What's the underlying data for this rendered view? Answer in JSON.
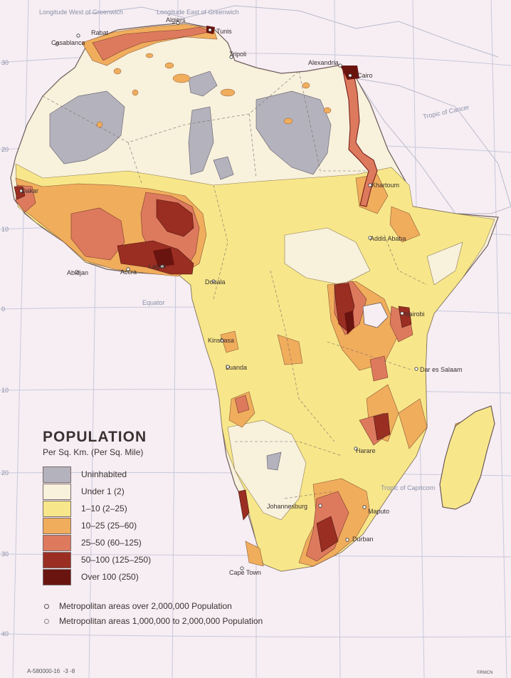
{
  "map": {
    "edge_labels": {
      "west": "Longitude West of Greenwich",
      "east": "Longitude East of Greenwich",
      "cancer": "Tropic of Cancer",
      "equator": "Equator",
      "capricorn": "Tropic of Capricorn"
    },
    "lat_labels": [
      "30",
      "20",
      "10",
      "0",
      "10",
      "20",
      "30",
      "40"
    ],
    "cities": [
      "Rabat",
      "Casablanca",
      "Algiers",
      "Tunis",
      "Tripoli",
      "Alexandria",
      "Cairo",
      "Khartoum",
      "Dakar",
      "Addis Ababa",
      "Abidjan",
      "Accra",
      "Lagos",
      "Douala",
      "Kinshasa",
      "Luanda",
      "Nairobi",
      "Dar es Salaam",
      "Harare",
      "Johannesburg",
      "Maputo",
      "Durban",
      "Cape Town"
    ],
    "colors": {
      "ocean": "#f6eef3",
      "uninhabited": "#b4b2bc",
      "under1": "#f8f1dc",
      "d1_10": "#f7e78a",
      "d10_25": "#f0ad5c",
      "d25_50": "#dd7a5e",
      "d50_100": "#9a2e22",
      "over100": "#6a1410"
    }
  },
  "legend": {
    "title": "POPULATION",
    "subtitle": "Per Sq. Km. (Per Sq. Mile)",
    "items": [
      {
        "label": "Uninhabited",
        "color": "#b4b2bc"
      },
      {
        "label": "Under 1 (2)",
        "color": "#f8f1dc"
      },
      {
        "label": "1–10 (2–25)",
        "color": "#f7e78a"
      },
      {
        "label": "10–25 (25–60)",
        "color": "#f0ad5c"
      },
      {
        "label": "25–50 (60–125)",
        "color": "#dd7a5e"
      },
      {
        "label": "50–100 (125–250)",
        "color": "#9a2e22"
      },
      {
        "label": "Over 100 (250)",
        "color": "#6a1410"
      }
    ],
    "metro": [
      "Metropolitan areas over 2,000,000 Population",
      "Metropolitan areas 1,000,000 to 2,000,000 Population"
    ]
  },
  "footer": {
    "code": "A-580000-16",
    "marks": "-3  -8",
    "credit": "©RMCN"
  }
}
